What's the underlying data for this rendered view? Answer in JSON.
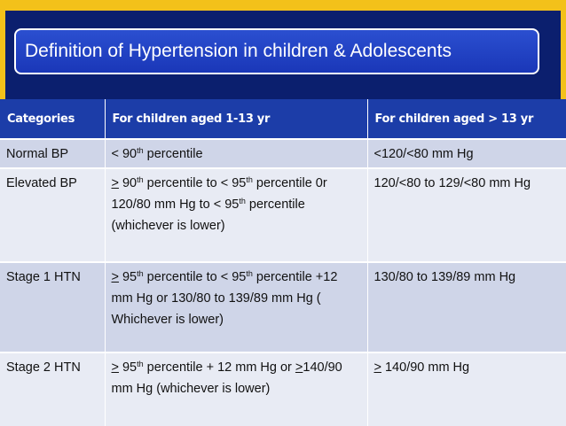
{
  "title": "Definition of Hypertension in children & Adolescents",
  "table": {
    "headers": [
      "Categories",
      "For children aged 1-13 yr",
      "For children aged > 13 yr"
    ],
    "rows": [
      {
        "category": "Normal BP",
        "child": {
          "p1": "< 90",
          "sup1": "th",
          "p2": " percentile"
        },
        "adol": "<120/<80 mm Hg"
      },
      {
        "category": "Elevated BP",
        "child": {
          "ge": ">",
          "p1": " 90",
          "sup1": "th",
          "p2": " percentile to < 95",
          "sup2": "th",
          "p3": " percentile 0r 120/80 mm Hg to < 95",
          "sup3": "th",
          "p4": " percentile (whichever is lower)"
        },
        "adol": "120/<80 to 129/<80 mm Hg"
      },
      {
        "category": "Stage 1 HTN",
        "child": {
          "ge": ">",
          "p1": " 95",
          "sup1": "th",
          "p2": " percentile to < 95",
          "sup2": "th",
          "p3": " percentile +12 mm Hg  or 130/80 to 139/89 mm Hg ( Whichever is lower)"
        },
        "adol": "130/80 to 139/89 mm Hg"
      },
      {
        "category": "Stage 2 HTN",
        "child": {
          "ge": ">",
          "p1": " 95",
          "sup1": "th",
          "p2": " percentile + 12 mm Hg or ",
          "ge2": ">",
          "p3": "140/90 mm Hg (whichever is lower)"
        },
        "adol": {
          "ge": ">",
          "text": " 140/90 mm Hg"
        }
      }
    ]
  }
}
